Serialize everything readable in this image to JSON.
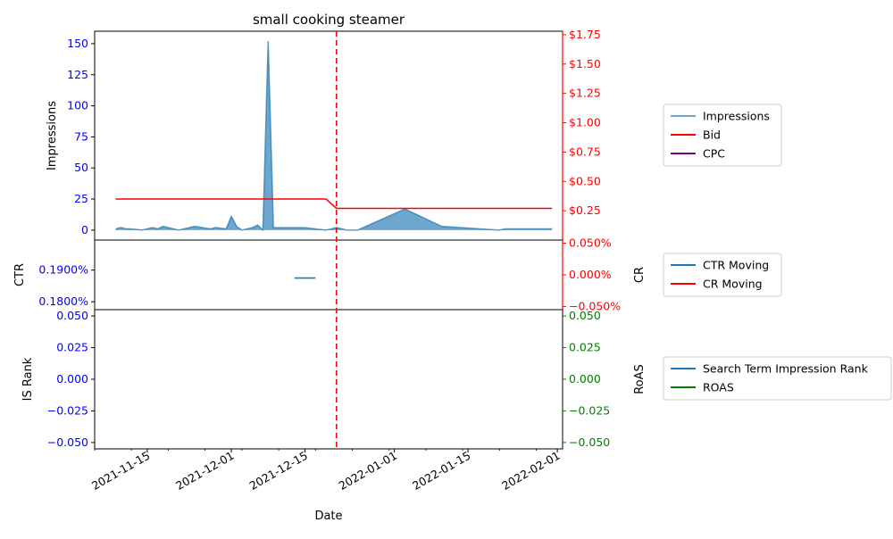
{
  "chart_data": {
    "type": "multi-panel",
    "title": "small cooking steamer",
    "xlabel": "Date",
    "x_ticks": [
      "2021-11-15",
      "2021-12-01",
      "2021-12-15",
      "2022-01-01",
      "2022-01-15",
      "2022-02-01"
    ],
    "x_range": [
      "2021-11-05",
      "2022-02-02"
    ],
    "event_line_date": "2021-12-21",
    "panels": [
      {
        "id": "top",
        "left_axis": {
          "label": "Impressions",
          "color": "#0000ff",
          "ylim": [
            -8,
            160
          ],
          "ticks": [
            "0",
            "25",
            "50",
            "75",
            "100",
            "125",
            "150"
          ],
          "tick_values": [
            0,
            25,
            50,
            75,
            100,
            125,
            150
          ]
        },
        "right_axis": {
          "label": "",
          "color": "#ff0000",
          "ylim": [
            0,
            1.78
          ],
          "ticks": [
            "$0.25",
            "$0.50",
            "$0.75",
            "$1.00",
            "$1.25",
            "$1.50",
            "$1.75"
          ],
          "tick_values": [
            0.25,
            0.5,
            0.75,
            1.0,
            1.25,
            1.5,
            1.75
          ]
        },
        "series": [
          {
            "name": "Impressions",
            "kind": "area",
            "axis": "left",
            "color": "#1f77b4",
            "x": [
              "2021-11-09",
              "2021-11-10",
              "2021-11-11",
              "2021-11-12",
              "2021-11-14",
              "2021-11-16",
              "2021-11-17",
              "2021-11-18",
              "2021-11-21",
              "2021-11-24",
              "2021-11-27",
              "2021-11-28",
              "2021-11-30",
              "2021-12-01",
              "2021-12-02",
              "2021-12-03",
              "2021-12-04",
              "2021-12-05",
              "2021-12-06",
              "2021-12-07",
              "2021-12-08",
              "2021-12-09",
              "2021-12-10",
              "2021-12-11",
              "2021-12-12",
              "2021-12-13",
              "2021-12-14",
              "2021-12-15",
              "2021-12-17",
              "2021-12-19",
              "2021-12-20",
              "2021-12-21",
              "2021-12-22",
              "2021-12-23",
              "2021-12-25",
              "2022-01-03",
              "2022-01-10",
              "2022-01-21",
              "2022-01-22",
              "2022-01-25",
              "2022-01-31"
            ],
            "values": [
              1,
              2,
              1,
              1,
              0,
              2,
              1,
              3,
              0,
              3,
              1,
              2,
              1,
              11,
              3,
              0,
              1,
              2,
              4,
              0,
              152,
              2,
              2,
              2,
              2,
              2,
              2,
              2,
              1,
              0,
              1,
              2,
              1,
              0,
              0,
              17,
              3,
              0,
              1,
              1,
              1
            ]
          },
          {
            "name": "Bid",
            "kind": "line",
            "axis": "right",
            "color": "#ff0000",
            "x": [
              "2021-11-09",
              "2021-12-19",
              "2021-12-21",
              "2022-01-31"
            ],
            "values": [
              0.35,
              0.35,
              0.27,
              0.27
            ]
          },
          {
            "name": "CPC",
            "kind": "line",
            "axis": "right",
            "color": "#800080",
            "x": [],
            "values": []
          }
        ],
        "legend": {
          "placement": "right",
          "items": [
            "Impressions",
            "Bid",
            "CPC"
          ]
        }
      },
      {
        "id": "middle",
        "left_axis": {
          "label": "CTR",
          "color": "#0000ff",
          "ylim": [
            0.1775,
            0.1995
          ],
          "ticks": [
            "0.1800%",
            "0.1900%"
          ],
          "tick_values": [
            0.18,
            0.19
          ]
        },
        "right_axis": {
          "label": "CR",
          "color": "#ff0000",
          "ylim": [
            -0.055,
            0.055
          ],
          "ticks": [
            "−0.050%",
            "0.000%",
            "0.050%"
          ],
          "tick_values": [
            -0.05,
            0.0,
            0.05
          ]
        },
        "series": [
          {
            "name": "CTR Moving",
            "kind": "line",
            "axis": "left",
            "color": "#1f77b4",
            "x": [
              "2021-12-13",
              "2021-12-17"
            ],
            "values": [
              0.1875,
              0.1875
            ]
          },
          {
            "name": "CR Moving",
            "kind": "line",
            "axis": "right",
            "color": "#ff0000",
            "x": [],
            "values": []
          }
        ],
        "legend": {
          "placement": "right",
          "items": [
            "CTR Moving",
            "CR Moving"
          ]
        }
      },
      {
        "id": "bottom",
        "left_axis": {
          "label": "IS Rank",
          "color": "#0000ff",
          "ylim": [
            -0.055,
            0.055
          ],
          "ticks": [
            "−0.050",
            "−0.025",
            "0.000",
            "0.025",
            "0.050"
          ],
          "tick_values": [
            -0.05,
            -0.025,
            0.0,
            0.025,
            0.05
          ]
        },
        "right_axis": {
          "label": "RoAS",
          "color": "#008000",
          "ylim": [
            -0.055,
            0.055
          ],
          "ticks": [
            "−0.050",
            "−0.025",
            "0.000",
            "0.025",
            "0.050"
          ],
          "tick_values": [
            -0.05,
            -0.025,
            0.0,
            0.025,
            0.05
          ]
        },
        "series": [
          {
            "name": "Search Term Impression Rank",
            "kind": "line",
            "axis": "left",
            "color": "#1f77b4",
            "x": [],
            "values": []
          },
          {
            "name": "ROAS",
            "kind": "line",
            "axis": "right",
            "color": "#008000",
            "x": [],
            "values": []
          }
        ],
        "legend": {
          "placement": "right",
          "items": [
            "Search Term Impression Rank",
            "ROAS"
          ]
        }
      }
    ]
  }
}
